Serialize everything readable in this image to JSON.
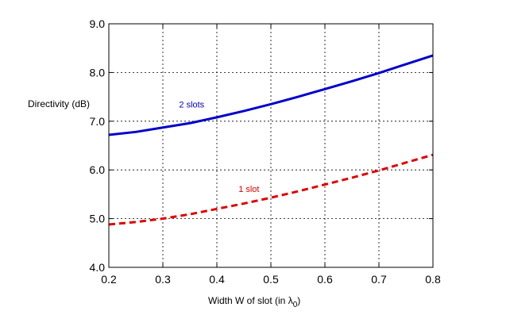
{
  "chart_data": {
    "type": "line",
    "title": "",
    "xlabel": "Width W of slot (in λ",
    "xlabel_subscript": "0",
    "xlabel_suffix": ")",
    "ylabel": "Directivity (dB)",
    "xlim": [
      0.2,
      0.8
    ],
    "ylim": [
      4.0,
      9.0
    ],
    "grid": true,
    "x_ticks": [
      "0.2",
      "0.3",
      "0.4",
      "0.5",
      "0.6",
      "0.7",
      "0.8"
    ],
    "y_ticks": [
      "4.0",
      "5.0",
      "6.0",
      "7.0",
      "8.0",
      "9.0"
    ],
    "x": [
      0.2,
      0.25,
      0.3,
      0.35,
      0.4,
      0.45,
      0.5,
      0.55,
      0.6,
      0.65,
      0.7,
      0.75,
      0.8
    ],
    "series": [
      {
        "name": "2 slots",
        "color": "#0000cc",
        "style": "solid",
        "values": [
          6.72,
          6.78,
          6.87,
          6.96,
          7.08,
          7.21,
          7.35,
          7.5,
          7.66,
          7.82,
          7.99,
          8.17,
          8.35
        ]
      },
      {
        "name": "1 slot",
        "color": "#e00000",
        "style": "dashed",
        "values": [
          4.88,
          4.93,
          5.0,
          5.09,
          5.2,
          5.31,
          5.43,
          5.56,
          5.7,
          5.84,
          5.99,
          6.15,
          6.31
        ]
      }
    ],
    "annotations": [
      {
        "text": "2 slots",
        "x": 0.33,
        "y": 7.28,
        "color": "#0000cc"
      },
      {
        "text": "1 slot",
        "x": 0.44,
        "y": 5.55,
        "color": "#e00000"
      }
    ]
  }
}
